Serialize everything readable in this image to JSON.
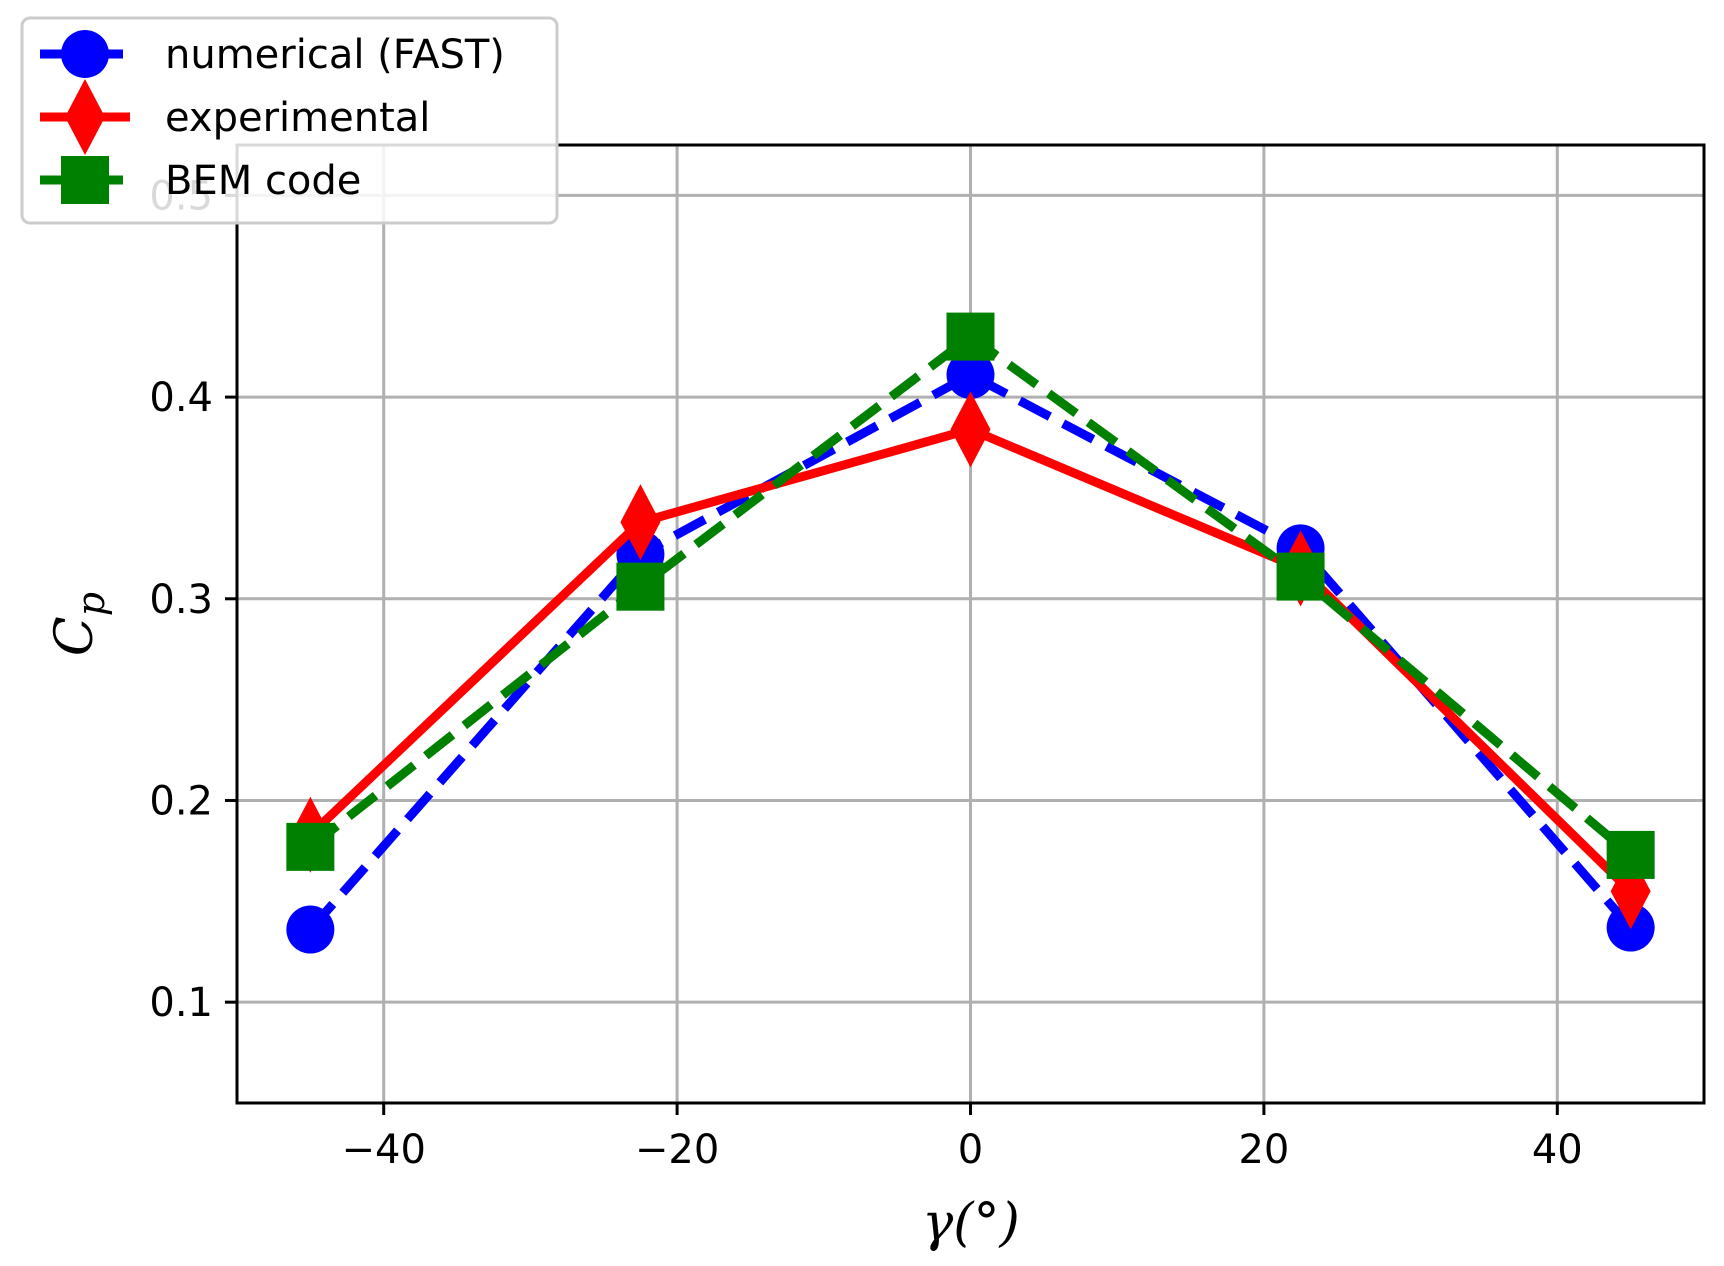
{
  "chart_data": {
    "type": "line",
    "title": "",
    "xlabel": "γ(°)",
    "ylabel": "C_p",
    "ylabel_main": "C",
    "ylabel_sub": "p",
    "xlim": [
      -50,
      50
    ],
    "ylim": [
      0.05,
      0.525
    ],
    "grid": true,
    "legend_position": "top-left",
    "x_ticks": [
      -40,
      -20,
      0,
      20,
      40
    ],
    "x_tick_labels": [
      "−40",
      "−20",
      "0",
      "20",
      "40"
    ],
    "y_ticks": [
      0.1,
      0.2,
      0.3,
      0.4,
      0.5
    ],
    "y_tick_labels": [
      "0.1",
      "0.2",
      "0.3",
      "0.4",
      "0.5"
    ],
    "series": [
      {
        "name": "numerical (FAST)",
        "color": "#0000ff",
        "line_style": "dashed",
        "marker": "circle",
        "x": [
          -45,
          -22.5,
          0,
          22.5,
          45
        ],
        "y": [
          0.136,
          0.322,
          0.411,
          0.325,
          0.137
        ]
      },
      {
        "name": "experimental",
        "color": "#ff0000",
        "line_style": "solid",
        "marker": "diamond",
        "x": [
          -45,
          -22.5,
          0,
          22.5,
          45
        ],
        "y": [
          0.183,
          0.338,
          0.384,
          0.315,
          0.155
        ]
      },
      {
        "name": "BEM code",
        "color": "#008000",
        "line_style": "dashed",
        "marker": "square",
        "x": [
          -45,
          -22.5,
          0,
          22.5,
          45
        ],
        "y": [
          0.177,
          0.306,
          0.43,
          0.311,
          0.173
        ]
      }
    ]
  }
}
